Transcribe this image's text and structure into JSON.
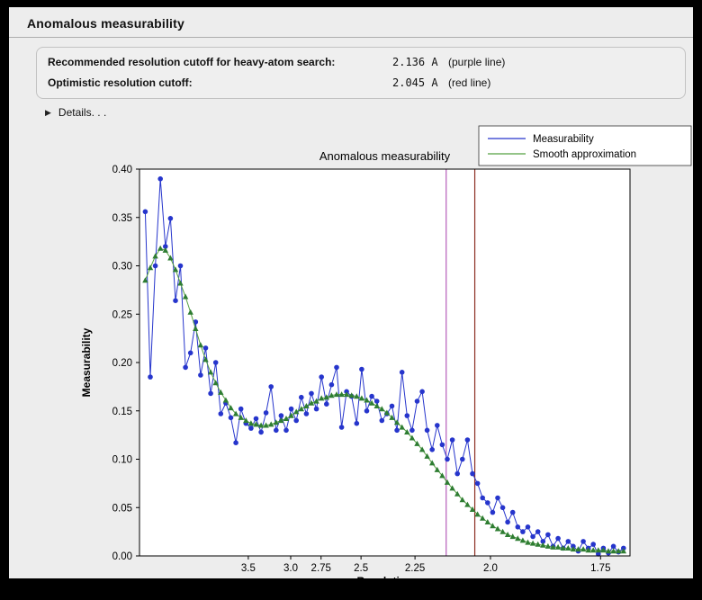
{
  "window": {
    "title": "Anomalous measurability"
  },
  "info_panel": {
    "rows": [
      {
        "label": "Recommended resolution cutoff for heavy-atom search:",
        "value": "2.136 A",
        "note": "(purple line)"
      },
      {
        "label": "Optimistic resolution cutoff:",
        "value": "2.045 A",
        "note": "(red line)"
      }
    ]
  },
  "details": {
    "label": "Details. . ."
  },
  "chart_data": {
    "type": "line",
    "title": "Anomalous measurability",
    "xlabel": "Resolution",
    "ylabel": "Measurability",
    "x_axis_note": "x axis plotted as 1/d^2, tick labels show resolution d in Angstrom",
    "xlim_s": [
      0.006,
      0.347
    ],
    "ylim": [
      0.0,
      0.4
    ],
    "grid": false,
    "legend_position": "top-right",
    "yticks": [
      "0.00",
      "0.05",
      "0.10",
      "0.15",
      "0.20",
      "0.25",
      "0.30",
      "0.35",
      "0.40"
    ],
    "xticks": [
      {
        "label": "3.5",
        "s": 0.08163
      },
      {
        "label": "3.0",
        "s": 0.11111
      },
      {
        "label": "2.75",
        "s": 0.13223
      },
      {
        "label": "2.5",
        "s": 0.16
      },
      {
        "label": "2.25",
        "s": 0.19753
      },
      {
        "label": "2.0",
        "s": 0.25
      },
      {
        "label": "1.75",
        "s": 0.32653
      }
    ],
    "x_s": [
      0.01,
      0.0135,
      0.017,
      0.0205,
      0.024,
      0.0275,
      0.031,
      0.0345,
      0.038,
      0.0415,
      0.045,
      0.0485,
      0.052,
      0.0555,
      0.059,
      0.0625,
      0.066,
      0.0695,
      0.073,
      0.0765,
      0.08,
      0.0835,
      0.087,
      0.0905,
      0.094,
      0.0975,
      0.101,
      0.1045,
      0.108,
      0.1115,
      0.115,
      0.1185,
      0.122,
      0.1255,
      0.129,
      0.1325,
      0.136,
      0.1395,
      0.143,
      0.1465,
      0.15,
      0.1535,
      0.157,
      0.1605,
      0.164,
      0.1675,
      0.171,
      0.1745,
      0.178,
      0.1815,
      0.185,
      0.1885,
      0.192,
      0.1955,
      0.199,
      0.2025,
      0.206,
      0.2095,
      0.213,
      0.2165,
      0.22,
      0.2235,
      0.227,
      0.2305,
      0.234,
      0.2375,
      0.241,
      0.2445,
      0.248,
      0.2515,
      0.255,
      0.2585,
      0.262,
      0.2655,
      0.269,
      0.2725,
      0.276,
      0.2795,
      0.283,
      0.2865,
      0.29,
      0.2935,
      0.297,
      0.3005,
      0.304,
      0.3075,
      0.311,
      0.3145,
      0.318,
      0.3215,
      0.325,
      0.3285,
      0.332,
      0.3355,
      0.339,
      0.3425
    ],
    "series": [
      {
        "name": "Measurability",
        "color": "#2635cc",
        "marker": "circle",
        "values": [
          0.356,
          0.185,
          0.3,
          0.39,
          0.32,
          0.349,
          0.264,
          0.3,
          0.195,
          0.21,
          0.242,
          0.187,
          0.215,
          0.168,
          0.2,
          0.147,
          0.158,
          0.143,
          0.117,
          0.152,
          0.137,
          0.132,
          0.142,
          0.128,
          0.148,
          0.175,
          0.13,
          0.145,
          0.13,
          0.152,
          0.14,
          0.164,
          0.147,
          0.168,
          0.152,
          0.185,
          0.157,
          0.177,
          0.195,
          0.133,
          0.17,
          0.165,
          0.137,
          0.193,
          0.15,
          0.165,
          0.16,
          0.14,
          0.147,
          0.155,
          0.13,
          0.19,
          0.145,
          0.13,
          0.16,
          0.17,
          0.13,
          0.11,
          0.135,
          0.115,
          0.1,
          0.12,
          0.085,
          0.1,
          0.12,
          0.085,
          0.075,
          0.06,
          0.055,
          0.045,
          0.06,
          0.05,
          0.035,
          0.045,
          0.03,
          0.025,
          0.03,
          0.02,
          0.025,
          0.015,
          0.022,
          0.01,
          0.018,
          0.008,
          0.015,
          0.01,
          0.005,
          0.015,
          0.008,
          0.012,
          0.002,
          0.008,
          0.003,
          0.01,
          0.004,
          0.008
        ]
      },
      {
        "name": "Smooth approximation",
        "color": "#55a040",
        "marker": "triangle",
        "marker_color": "#2e7d32",
        "values": [
          0.285,
          0.298,
          0.31,
          0.318,
          0.316,
          0.308,
          0.296,
          0.282,
          0.268,
          0.252,
          0.235,
          0.218,
          0.203,
          0.19,
          0.179,
          0.169,
          0.161,
          0.153,
          0.147,
          0.143,
          0.14,
          0.137,
          0.136,
          0.135,
          0.135,
          0.136,
          0.138,
          0.14,
          0.142,
          0.145,
          0.149,
          0.152,
          0.155,
          0.158,
          0.16,
          0.163,
          0.164,
          0.166,
          0.167,
          0.167,
          0.167,
          0.166,
          0.165,
          0.163,
          0.161,
          0.158,
          0.155,
          0.152,
          0.148,
          0.143,
          0.138,
          0.133,
          0.128,
          0.122,
          0.116,
          0.11,
          0.103,
          0.096,
          0.089,
          0.083,
          0.076,
          0.07,
          0.064,
          0.058,
          0.053,
          0.048,
          0.043,
          0.039,
          0.035,
          0.031,
          0.028,
          0.025,
          0.022,
          0.02,
          0.018,
          0.016,
          0.014,
          0.013,
          0.012,
          0.011,
          0.01,
          0.009,
          0.009,
          0.008,
          0.008,
          0.007,
          0.007,
          0.007,
          0.006,
          0.006,
          0.006,
          0.006,
          0.005,
          0.005,
          0.005,
          0.005
        ]
      }
    ],
    "vlines": [
      {
        "name": "purple-cutoff-line",
        "label": "purple line",
        "resolution": "2.136 A",
        "s": 0.2192,
        "color": "#b65cba"
      },
      {
        "name": "red-cutoff-line",
        "label": "red line",
        "resolution": "2.045 A",
        "s": 0.2391,
        "color": "#8b2e21"
      }
    ]
  }
}
